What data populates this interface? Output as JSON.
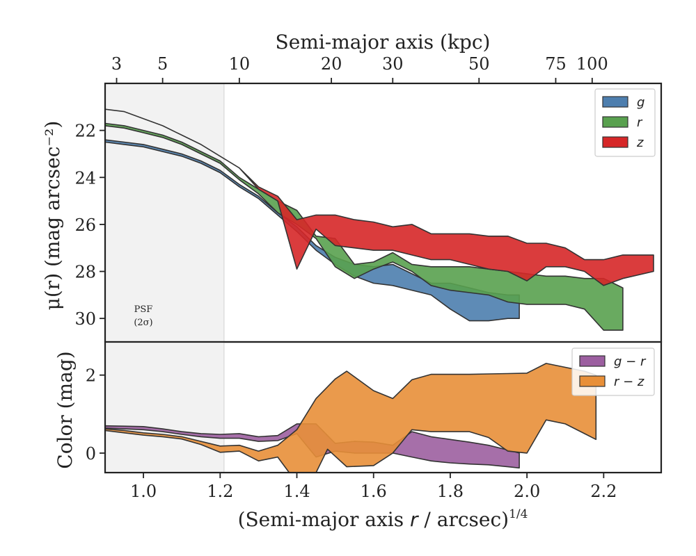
{
  "chart_data": [
    {
      "panel": "top",
      "type": "area",
      "top_xlabel": "Semi-major axis (kpc)",
      "top_ticks": [
        {
          "kpc": 3,
          "x": 0.93
        },
        {
          "kpc": 5,
          "x": 1.05
        },
        {
          "kpc": 10,
          "x": 1.25
        },
        {
          "kpc": 20,
          "x": 1.49
        },
        {
          "kpc": 30,
          "x": 1.65
        },
        {
          "kpc": 50,
          "x": 1.875
        },
        {
          "kpc": 75,
          "x": 2.075
        },
        {
          "kpc": 100,
          "x": 2.17
        }
      ],
      "ylabel": "μ(r) (mag arcsec⁻²)",
      "xlim": [
        0.9,
        2.35
      ],
      "ylim": [
        20.0,
        31.0
      ],
      "yticks": [
        22,
        24,
        26,
        28,
        30
      ],
      "y_inverted": true,
      "psf_limit_x": 1.21,
      "psf_label": [
        "PSF",
        "(2σ)"
      ],
      "legend": {
        "position": "top-right",
        "entries": [
          "g",
          "r",
          "z"
        ]
      },
      "series": [
        {
          "name": "g",
          "color": "#4d7eae",
          "upper": [
            [
              0.9,
              22.4
            ],
            [
              0.95,
              22.5
            ],
            [
              1.0,
              22.6
            ],
            [
              1.05,
              22.8
            ],
            [
              1.1,
              23.0
            ],
            [
              1.15,
              23.3
            ],
            [
              1.2,
              23.7
            ],
            [
              1.25,
              24.3
            ],
            [
              1.3,
              24.8
            ],
            [
              1.35,
              25.5
            ],
            [
              1.4,
              26.1
            ],
            [
              1.45,
              26.9
            ],
            [
              1.5,
              27.4
            ],
            [
              1.55,
              27.7
            ],
            [
              1.6,
              27.8
            ],
            [
              1.65,
              27.7
            ],
            [
              1.7,
              28.1
            ],
            [
              1.75,
              28.5
            ],
            [
              1.8,
              28.5
            ],
            [
              1.85,
              28.7
            ],
            [
              1.9,
              28.9
            ],
            [
              1.95,
              29.0
            ],
            [
              1.98,
              29.0
            ]
          ],
          "lower": [
            [
              0.9,
              22.5
            ],
            [
              0.95,
              22.6
            ],
            [
              1.0,
              22.7
            ],
            [
              1.05,
              22.9
            ],
            [
              1.1,
              23.1
            ],
            [
              1.15,
              23.4
            ],
            [
              1.2,
              23.8
            ],
            [
              1.25,
              24.4
            ],
            [
              1.3,
              24.9
            ],
            [
              1.35,
              25.6
            ],
            [
              1.4,
              26.3
            ],
            [
              1.45,
              27.1
            ],
            [
              1.5,
              27.7
            ],
            [
              1.55,
              28.2
            ],
            [
              1.6,
              28.5
            ],
            [
              1.65,
              28.6
            ],
            [
              1.7,
              28.8
            ],
            [
              1.75,
              29.0
            ],
            [
              1.8,
              29.6
            ],
            [
              1.85,
              30.1
            ],
            [
              1.9,
              30.1
            ],
            [
              1.95,
              30.0
            ],
            [
              1.98,
              30.0
            ]
          ]
        },
        {
          "name": "r",
          "color": "#59a14f",
          "upper": [
            [
              0.9,
              21.7
            ],
            [
              0.95,
              21.8
            ],
            [
              1.0,
              22.0
            ],
            [
              1.05,
              22.2
            ],
            [
              1.1,
              22.5
            ],
            [
              1.15,
              22.9
            ],
            [
              1.2,
              23.3
            ],
            [
              1.25,
              24.0
            ],
            [
              1.3,
              24.5
            ],
            [
              1.35,
              25.0
            ],
            [
              1.4,
              25.4
            ],
            [
              1.45,
              26.5
            ],
            [
              1.5,
              26.6
            ],
            [
              1.55,
              27.7
            ],
            [
              1.6,
              27.6
            ],
            [
              1.65,
              27.2
            ],
            [
              1.7,
              27.7
            ],
            [
              1.75,
              27.8
            ],
            [
              1.8,
              27.8
            ],
            [
              1.85,
              27.8
            ],
            [
              1.9,
              27.9
            ],
            [
              1.95,
              28.0
            ],
            [
              2.0,
              28.1
            ],
            [
              2.05,
              28.2
            ],
            [
              2.1,
              28.2
            ],
            [
              2.15,
              28.3
            ],
            [
              2.2,
              28.3
            ],
            [
              2.25,
              28.7
            ]
          ],
          "lower": [
            [
              0.9,
              21.8
            ],
            [
              0.95,
              21.9
            ],
            [
              1.0,
              22.1
            ],
            [
              1.05,
              22.3
            ],
            [
              1.1,
              22.6
            ],
            [
              1.15,
              23.0
            ],
            [
              1.2,
              23.4
            ],
            [
              1.25,
              24.1
            ],
            [
              1.3,
              24.7
            ],
            [
              1.35,
              25.5
            ],
            [
              1.4,
              26.0
            ],
            [
              1.45,
              26.6
            ],
            [
              1.5,
              27.8
            ],
            [
              1.55,
              28.3
            ],
            [
              1.6,
              27.9
            ],
            [
              1.65,
              27.6
            ],
            [
              1.7,
              28.0
            ],
            [
              1.75,
              28.6
            ],
            [
              1.8,
              28.8
            ],
            [
              1.85,
              28.9
            ],
            [
              1.9,
              29.0
            ],
            [
              1.95,
              29.3
            ],
            [
              2.0,
              29.4
            ],
            [
              2.05,
              29.4
            ],
            [
              2.1,
              29.4
            ],
            [
              2.15,
              29.6
            ],
            [
              2.2,
              30.5
            ],
            [
              2.25,
              30.5
            ]
          ]
        },
        {
          "name": "z",
          "color": "#d62728",
          "upper": [
            [
              0.9,
              21.1
            ],
            [
              0.95,
              21.2
            ],
            [
              1.0,
              21.5
            ],
            [
              1.05,
              21.8
            ],
            [
              1.1,
              22.2
            ],
            [
              1.15,
              22.6
            ],
            [
              1.2,
              23.1
            ],
            [
              1.25,
              23.6
            ],
            [
              1.3,
              24.4
            ],
            [
              1.35,
              24.8
            ],
            [
              1.4,
              25.8
            ],
            [
              1.45,
              25.6
            ],
            [
              1.5,
              25.6
            ],
            [
              1.55,
              25.8
            ],
            [
              1.6,
              25.9
            ],
            [
              1.65,
              26.1
            ],
            [
              1.7,
              26.0
            ],
            [
              1.75,
              26.4
            ],
            [
              1.8,
              26.4
            ],
            [
              1.85,
              26.4
            ],
            [
              1.9,
              26.5
            ],
            [
              1.95,
              26.5
            ],
            [
              2.0,
              26.8
            ],
            [
              2.05,
              26.8
            ],
            [
              2.1,
              27.0
            ],
            [
              2.15,
              27.5
            ],
            [
              2.2,
              27.5
            ],
            [
              2.25,
              27.3
            ],
            [
              2.33,
              27.3
            ]
          ],
          "lower": [
            [
              0.9,
              21.1
            ],
            [
              0.95,
              21.2
            ],
            [
              1.0,
              21.5
            ],
            [
              1.05,
              21.8
            ],
            [
              1.1,
              22.2
            ],
            [
              1.15,
              22.6
            ],
            [
              1.2,
              23.1
            ],
            [
              1.25,
              23.6
            ],
            [
              1.3,
              24.5
            ],
            [
              1.35,
              25.0
            ],
            [
              1.4,
              27.9
            ],
            [
              1.45,
              26.2
            ],
            [
              1.5,
              26.9
            ],
            [
              1.55,
              27.0
            ],
            [
              1.6,
              27.1
            ],
            [
              1.65,
              27.1
            ],
            [
              1.7,
              27.3
            ],
            [
              1.75,
              27.5
            ],
            [
              1.8,
              27.5
            ],
            [
              1.85,
              27.7
            ],
            [
              1.9,
              27.9
            ],
            [
              1.95,
              28.0
            ],
            [
              2.0,
              28.4
            ],
            [
              2.05,
              27.8
            ],
            [
              2.1,
              27.8
            ],
            [
              2.15,
              28.0
            ],
            [
              2.2,
              28.6
            ],
            [
              2.25,
              28.3
            ],
            [
              2.33,
              28.0
            ]
          ]
        }
      ]
    },
    {
      "panel": "bottom",
      "type": "area",
      "xlabel": "(Semi-major axis r / arcsec)^1/4",
      "ylabel": "Color (mag)",
      "xlim": [
        0.9,
        2.35
      ],
      "ylim": [
        -0.5,
        2.85
      ],
      "xticks": [
        1.0,
        1.2,
        1.4,
        1.6,
        1.8,
        2.0,
        2.2
      ],
      "yticks": [
        0,
        2
      ],
      "psf_limit_x": 1.21,
      "legend": {
        "position": "top-right",
        "entries": [
          "g − r",
          "r − z"
        ]
      },
      "series": [
        {
          "name": "g − r",
          "color": "#9c5fa0",
          "upper": [
            [
              0.9,
              0.7
            ],
            [
              0.95,
              0.69
            ],
            [
              1.0,
              0.68
            ],
            [
              1.05,
              0.62
            ],
            [
              1.1,
              0.55
            ],
            [
              1.15,
              0.5
            ],
            [
              1.2,
              0.48
            ],
            [
              1.25,
              0.5
            ],
            [
              1.3,
              0.42
            ],
            [
              1.35,
              0.45
            ],
            [
              1.4,
              0.75
            ],
            [
              1.45,
              0.75
            ],
            [
              1.5,
              0.25
            ],
            [
              1.55,
              0.3
            ],
            [
              1.6,
              0.28
            ],
            [
              1.65,
              0.2
            ],
            [
              1.7,
              0.55
            ],
            [
              1.75,
              0.42
            ],
            [
              1.8,
              0.35
            ],
            [
              1.85,
              0.28
            ],
            [
              1.9,
              0.2
            ],
            [
              1.95,
              0.08
            ],
            [
              1.98,
              0.0
            ]
          ],
          "lower": [
            [
              0.9,
              0.64
            ],
            [
              0.95,
              0.62
            ],
            [
              1.0,
              0.6
            ],
            [
              1.05,
              0.55
            ],
            [
              1.1,
              0.48
            ],
            [
              1.15,
              0.42
            ],
            [
              1.2,
              0.38
            ],
            [
              1.25,
              0.38
            ],
            [
              1.3,
              0.3
            ],
            [
              1.35,
              0.32
            ],
            [
              1.4,
              0.5
            ],
            [
              1.45,
              -0.1
            ],
            [
              1.5,
              0.05
            ],
            [
              1.55,
              0.0
            ],
            [
              1.6,
              0.0
            ],
            [
              1.65,
              0.0
            ],
            [
              1.7,
              -0.1
            ],
            [
              1.75,
              -0.2
            ],
            [
              1.8,
              -0.25
            ],
            [
              1.85,
              -0.28
            ],
            [
              1.9,
              -0.3
            ],
            [
              1.95,
              -0.35
            ],
            [
              1.98,
              -0.38
            ]
          ]
        },
        {
          "name": "r − z",
          "color": "#e88f38",
          "upper": [
            [
              0.9,
              0.62
            ],
            [
              0.95,
              0.58
            ],
            [
              1.0,
              0.52
            ],
            [
              1.05,
              0.48
            ],
            [
              1.1,
              0.42
            ],
            [
              1.15,
              0.3
            ],
            [
              1.2,
              0.18
            ],
            [
              1.25,
              0.2
            ],
            [
              1.3,
              0.05
            ],
            [
              1.35,
              0.2
            ],
            [
              1.4,
              0.6
            ],
            [
              1.45,
              1.4
            ],
            [
              1.5,
              1.9
            ],
            [
              1.53,
              2.1
            ],
            [
              1.6,
              1.6
            ],
            [
              1.65,
              1.4
            ],
            [
              1.7,
              1.88
            ],
            [
              1.75,
              2.02
            ],
            [
              1.8,
              2.02
            ],
            [
              1.85,
              2.02
            ],
            [
              1.9,
              2.03
            ],
            [
              1.95,
              2.04
            ],
            [
              2.0,
              2.05
            ],
            [
              2.05,
              2.3
            ],
            [
              2.1,
              2.2
            ],
            [
              2.15,
              2.1
            ],
            [
              2.18,
              2.0
            ]
          ],
          "lower": [
            [
              0.9,
              0.58
            ],
            [
              0.95,
              0.52
            ],
            [
              1.0,
              0.46
            ],
            [
              1.05,
              0.42
            ],
            [
              1.1,
              0.36
            ],
            [
              1.15,
              0.22
            ],
            [
              1.2,
              0.02
            ],
            [
              1.25,
              0.05
            ],
            [
              1.3,
              -0.2
            ],
            [
              1.35,
              -0.1
            ],
            [
              1.38,
              -0.5
            ],
            [
              1.45,
              -0.5
            ],
            [
              1.48,
              0.1
            ],
            [
              1.53,
              -0.35
            ],
            [
              1.6,
              -0.32
            ],
            [
              1.65,
              0.0
            ],
            [
              1.7,
              0.6
            ],
            [
              1.75,
              0.55
            ],
            [
              1.8,
              0.55
            ],
            [
              1.85,
              0.55
            ],
            [
              1.9,
              0.4
            ],
            [
              1.95,
              0.05
            ],
            [
              2.0,
              0.0
            ],
            [
              2.05,
              0.85
            ],
            [
              2.1,
              0.75
            ],
            [
              2.15,
              0.5
            ],
            [
              2.18,
              0.35
            ]
          ]
        }
      ]
    }
  ]
}
